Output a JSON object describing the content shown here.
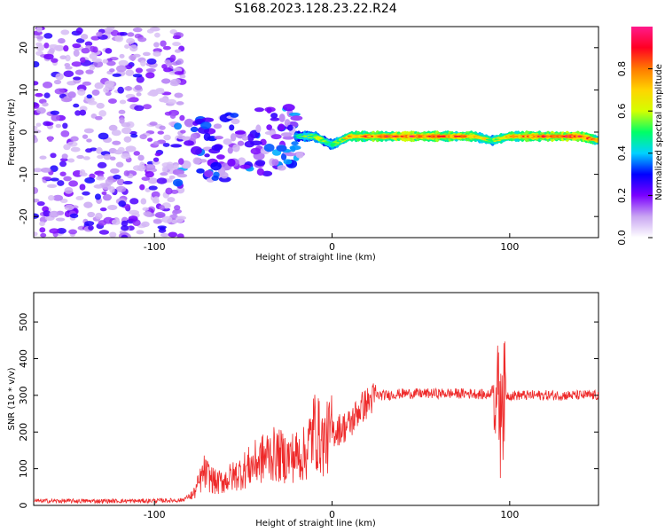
{
  "chart_data": [
    {
      "type": "heatmap",
      "title": "S168.2023.128.23.22.R24",
      "xlabel": "Height of straight line (km)",
      "ylabel": "Frequency (Hz)",
      "xlim": [
        -168,
        150
      ],
      "ylim": [
        -25,
        25
      ],
      "xticks": [
        -100,
        0,
        100
      ],
      "yticks": [
        -20,
        -10,
        0,
        10,
        20
      ],
      "colorbar": {
        "label": "Normalized spectral amplitude",
        "range": [
          0,
          1
        ],
        "ticks": [
          "0.0",
          "0.2",
          "0.4",
          "0.6",
          "0.8"
        ],
        "colors": [
          "#ffffff",
          "#c9a6f2",
          "#7a00ff",
          "#0000ff",
          "#00d2ff",
          "#00ff66",
          "#d4ff00",
          "#ffd400",
          "#ff7a00",
          "#ff0022",
          "#ff1a8c"
        ]
      },
      "ridge": {
        "description_points_x": [
          -20,
          -10,
          0,
          10,
          20,
          40,
          60,
          80,
          90,
          100,
          120,
          140,
          150
        ],
        "frequency_hz": [
          -1,
          -1,
          -3,
          -1,
          -1,
          -1,
          -1,
          -1,
          -2,
          -1,
          -1,
          -1,
          -2
        ],
        "peak_amplitude": [
          0.45,
          0.6,
          0.5,
          0.75,
          0.85,
          0.95,
          0.9,
          0.8,
          0.6,
          0.8,
          0.9,
          0.95,
          0.7
        ]
      }
    },
    {
      "type": "line",
      "xlabel": "Height of straight line (km)",
      "ylabel": "SNR (10 * v/v)",
      "xlim": [
        -168,
        150
      ],
      "ylim": [
        0,
        580
      ],
      "xticks": [
        -100,
        0,
        100
      ],
      "yticks": [
        0,
        100,
        200,
        300,
        400,
        500
      ],
      "color": "#ee2a2a",
      "series": [
        {
          "x": [
            -168,
            -140,
            -110,
            -85,
            -78,
            -72,
            -65,
            -55,
            -45,
            -35,
            -25,
            -15,
            -10,
            -5,
            0,
            5,
            10,
            15,
            20,
            25,
            30,
            40,
            50,
            60,
            70,
            80,
            88,
            92,
            94,
            95,
            96,
            98,
            100,
            110,
            120,
            130,
            140,
            150
          ],
          "values": [
            12,
            12,
            12,
            14,
            30,
            90,
            60,
            80,
            110,
            140,
            130,
            140,
            210,
            170,
            200,
            210,
            220,
            260,
            280,
            300,
            300,
            305,
            305,
            305,
            305,
            305,
            300,
            330,
            260,
            500,
            280,
            300,
            300,
            300,
            300,
            300,
            300,
            300
          ]
        }
      ]
    }
  ]
}
